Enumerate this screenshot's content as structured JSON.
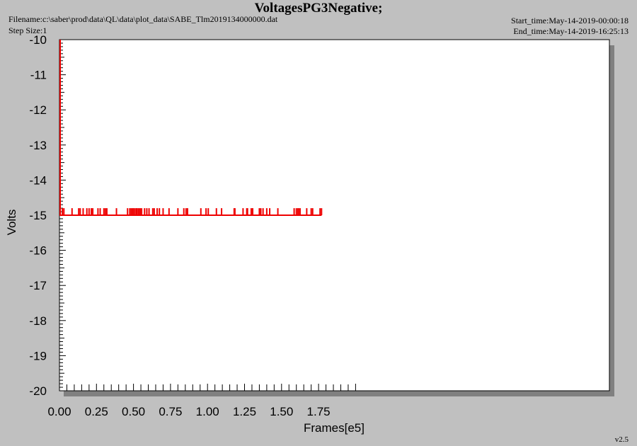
{
  "header": {
    "title": "VoltagesPG3Negative;",
    "filename": "Filename:c:\\saber\\prod\\data\\QL\\data\\plot_data\\SABE_Tlm2019134000000.dat",
    "step_size": "Step Size:1",
    "start_time": "Start_time:May-14-2019-00:00:18",
    "end_time": "End_time:May-14-2019-16:25:13"
  },
  "footer": {
    "version": "v2.5"
  },
  "colors": {
    "series": "#ee0000",
    "plot_bg": "#ffffff",
    "page_bg": "#c0c0c0",
    "shadow": "#808080"
  },
  "chart_data": {
    "type": "line",
    "title": "VoltagesPG3Negative;",
    "xlabel": "Frames[e5]",
    "ylabel": "Volts",
    "xlim": [
      0,
      1.87
    ],
    "ylim": [
      -20,
      -10
    ],
    "xticks": [
      "0.00",
      "0.25",
      "0.50",
      "0.75",
      "1.00",
      "1.25",
      "1.50",
      "1.75"
    ],
    "yticks": [
      "-10",
      "-11",
      "-12",
      "-13",
      "-14",
      "-15",
      "-16",
      "-17",
      "-18",
      "-19",
      "-20"
    ],
    "grid": false,
    "series": [
      {
        "baseline": -15.0,
        "x_range": [
          0.0,
          1.77
        ],
        "spike_value": -14.8,
        "spike_x": [
          0.02,
          0.03,
          0.085,
          0.13,
          0.14,
          0.16,
          0.185,
          0.2,
          0.215,
          0.225,
          0.26,
          0.275,
          0.3,
          0.31,
          0.32,
          0.385,
          0.46,
          0.475,
          0.485,
          0.495,
          0.5,
          0.51,
          0.52,
          0.525,
          0.535,
          0.545,
          0.555,
          0.575,
          0.59,
          0.605,
          0.63,
          0.64,
          0.66,
          0.675,
          0.7,
          0.74,
          0.8,
          0.84,
          0.855,
          0.865,
          0.955,
          0.99,
          1.005,
          1.06,
          1.095,
          1.18,
          1.185,
          1.24,
          1.265,
          1.27,
          1.295,
          1.305,
          1.35,
          1.36,
          1.375,
          1.4,
          1.42,
          1.475,
          1.585,
          1.6,
          1.61,
          1.615,
          1.625,
          1.67,
          1.7,
          1.71,
          1.76,
          1.77
        ]
      }
    ]
  }
}
